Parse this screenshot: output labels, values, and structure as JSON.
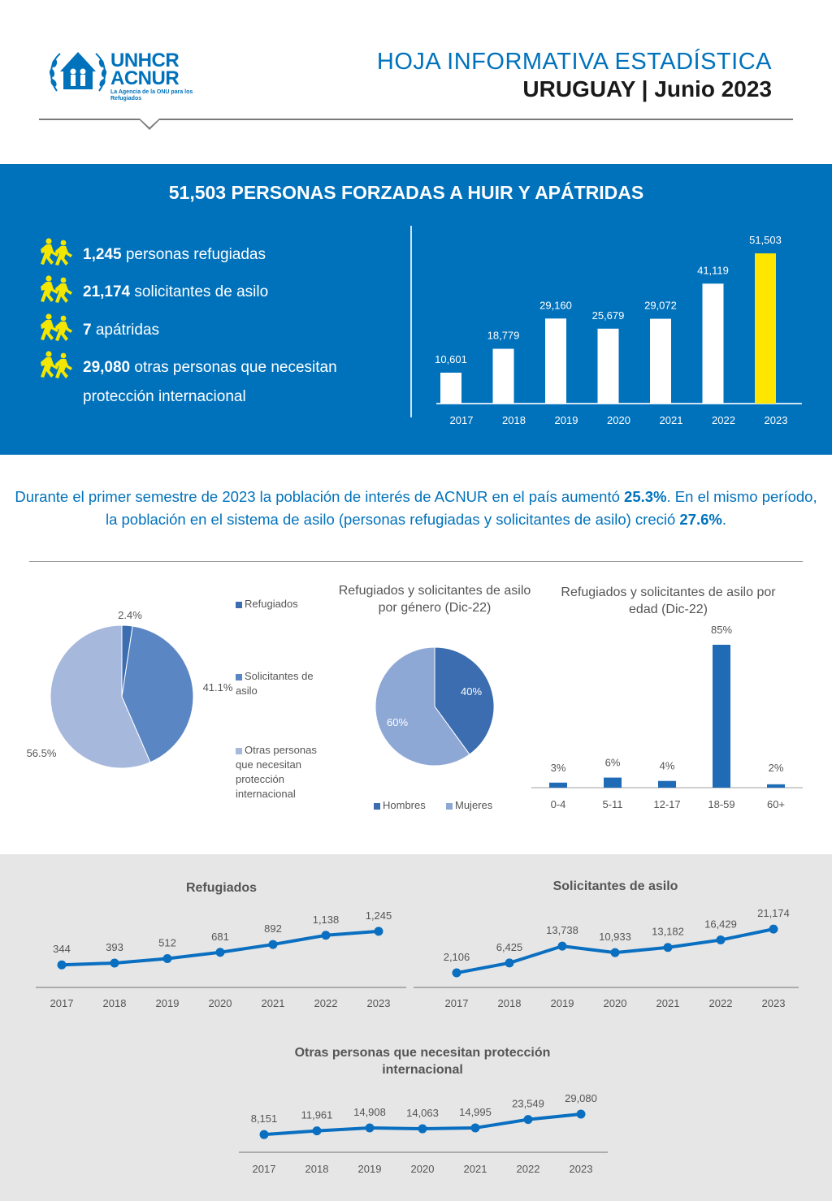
{
  "header": {
    "logo_line1": "UNHCR",
    "logo_line2": "ACNUR",
    "logo_sub": "La Agencia de la ONU para los Refugiados",
    "title": "HOJA INFORMATIVA ESTADÍSTICA",
    "subtitle": "URUGUAY | Junio 2023"
  },
  "band": {
    "title": "51,503 PERSONAS FORZADAS A HUIR Y APÁTRIDAS",
    "stats": [
      {
        "value": "1,245",
        "label": " personas refugiadas",
        "icon": "running-people-icon"
      },
      {
        "value": "21,174",
        "label": " solicitantes de asilo",
        "icon": "running-people-icon"
      },
      {
        "value": "7",
        "label": " apátridas",
        "icon": "running-people-icon"
      },
      {
        "value": "29,080",
        "label": " otras personas que necesitan protección internacional",
        "icon": "running-people-icon"
      }
    ]
  },
  "intro": {
    "p1": "Durante el primer semestre de 2023 la población de interés de ACNUR en el país aumentó ",
    "v1": "25.3%",
    "p2": ". En el mismo período, la población en el sistema de asilo (personas refugiadas y solicitantes de asilo) creció ",
    "v2": "27.6%",
    "p3": "."
  },
  "colors": {
    "unhcr_blue": "#0072bc",
    "highlight_yellow": "#ffe500",
    "icon_yellow": "#f3e600",
    "pie_refugiados": "#3c6db0",
    "pie_solicitantes": "#5b86c4",
    "pie_otras": "#a6b8db",
    "line_blue": "#0a6fc0",
    "age_bar": "#1f6bb5"
  },
  "chart_data": [
    {
      "id": "total",
      "type": "bar",
      "categories": [
        "2017",
        "2018",
        "2019",
        "2020",
        "2021",
        "2022",
        "2023"
      ],
      "values": [
        10601,
        18779,
        29160,
        25679,
        29072,
        41119,
        51503
      ],
      "labels": [
        "10,601",
        "18,779",
        "29,160",
        "25,679",
        "29,072",
        "41,119",
        "51,503"
      ],
      "highlight_index": 6,
      "ylim": [
        0,
        56000
      ]
    },
    {
      "id": "composition",
      "type": "pie",
      "slices": [
        {
          "name": "Refugiados",
          "value": 2.4,
          "label": "2.4%"
        },
        {
          "name": "Solicitantes de asilo",
          "value": 41.1,
          "label": "41.1%"
        },
        {
          "name": "Otras personas que necesitan protección internacional",
          "value": 56.5,
          "label": "56.5%"
        }
      ]
    },
    {
      "id": "gender",
      "type": "pie",
      "title": "Refugiados y solicitantes de asilo por género (Dic-22)",
      "slices": [
        {
          "name": "Hombres",
          "value": 40,
          "label": "40%"
        },
        {
          "name": "Mujeres",
          "value": 60,
          "label": "60%"
        }
      ]
    },
    {
      "id": "age",
      "type": "bar",
      "title": "Refugiados y solicitantes de asilo por edad (Dic-22)",
      "categories": [
        "0-4",
        "5-11",
        "12-17",
        "18-59",
        "60+"
      ],
      "values": [
        3,
        6,
        4,
        85,
        2
      ],
      "labels": [
        "3%",
        "6%",
        "4%",
        "85%",
        "2%"
      ],
      "ylim": [
        0,
        90
      ]
    },
    {
      "id": "refugiados",
      "type": "line",
      "title": "Refugiados",
      "x": [
        "2017",
        "2018",
        "2019",
        "2020",
        "2021",
        "2022",
        "2023"
      ],
      "values": [
        344,
        393,
        512,
        681,
        892,
        1138,
        1245
      ],
      "labels": [
        "344",
        "393",
        "512",
        "681",
        "892",
        "1,138",
        "1,245"
      ],
      "ylim": [
        0,
        1700
      ]
    },
    {
      "id": "solicitantes",
      "type": "line",
      "title": "Solicitantes de asilo",
      "x": [
        "2017",
        "2018",
        "2019",
        "2020",
        "2021",
        "2022",
        "2023"
      ],
      "values": [
        2106,
        6425,
        13738,
        10933,
        13182,
        16429,
        21174
      ],
      "labels": [
        "2,106",
        "6,425",
        "13,738",
        "10,933",
        "13,182",
        "16,429",
        "21,174"
      ],
      "ylim": [
        0,
        29000
      ]
    },
    {
      "id": "otras",
      "type": "line",
      "title": "Otras personas que necesitan protección internacional",
      "x": [
        "2017",
        "2018",
        "2019",
        "2020",
        "2021",
        "2022",
        "2023"
      ],
      "values": [
        8151,
        11961,
        14908,
        14063,
        14995,
        23549,
        29080
      ],
      "labels": [
        "8,151",
        "11,961",
        "14,908",
        "14,063",
        "14,995",
        "23,549",
        "29,080"
      ],
      "ylim": [
        0,
        44000
      ]
    }
  ]
}
